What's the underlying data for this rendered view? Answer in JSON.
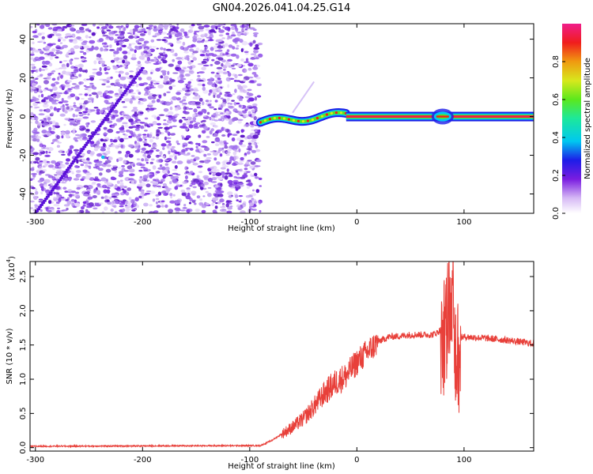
{
  "title": "GN04.2026.041.04.25.G14",
  "chart_data": [
    {
      "type": "heatmap",
      "name": "spectrogram",
      "xlabel": "Height of straight line (km)",
      "ylabel": "Frequency (Hz)",
      "xlim": [
        -305,
        165
      ],
      "ylim": [
        -50,
        48
      ],
      "xticks": [
        -300,
        -200,
        -100,
        0,
        100
      ],
      "yticks": [
        -40,
        -20,
        0,
        20,
        40
      ],
      "noise_region_x": [
        -305,
        -90
      ],
      "linear_trend": {
        "x": [
          -300,
          -200
        ],
        "y": [
          -50,
          25
        ]
      },
      "strong_signal": {
        "x": [
          -90,
          165
        ],
        "y": [
          -4,
          1
        ]
      },
      "faint_branch": {
        "x": [
          -60,
          -40
        ],
        "y": [
          2,
          18
        ]
      },
      "colorbar": {
        "label": "Normalized spectral amplitude",
        "range": [
          0,
          1
        ],
        "ticks": [
          "0.0",
          "0.2",
          "0.4",
          "0.6",
          "0.8"
        ]
      }
    },
    {
      "type": "line",
      "name": "snr",
      "xlabel": "Height of straight line (km)",
      "ylabel": "SNR (10 * v/v)",
      "scale_note": "(x10",
      "scale_exp": "4",
      "scale_close": ")",
      "xlim": [
        -305,
        165
      ],
      "ylim": [
        -0.05,
        2.72
      ],
      "xticks": [
        -300,
        -200,
        -100,
        0,
        100
      ],
      "yticks": [
        "0.0",
        "0.5",
        "1.0",
        "1.5",
        "2.0",
        "2.5"
      ],
      "color": "#e8403a",
      "series": [
        {
          "name": "SNR",
          "x": [
            -305,
            -100,
            -90,
            -80,
            -70,
            -60,
            -50,
            -40,
            -30,
            -20,
            -10,
            0,
            10,
            20,
            30,
            40,
            50,
            60,
            70,
            75,
            80,
            85,
            88,
            90,
            92,
            95,
            100,
            120,
            140,
            165
          ],
          "y": [
            0.02,
            0.03,
            0.03,
            0.1,
            0.2,
            0.3,
            0.42,
            0.6,
            0.8,
            0.95,
            1.05,
            1.25,
            1.4,
            1.55,
            1.62,
            1.63,
            1.65,
            1.65,
            1.65,
            1.68,
            1.75,
            2.2,
            2.65,
            2.4,
            1.7,
            1.6,
            1.62,
            1.6,
            1.57,
            1.52
          ]
        }
      ]
    }
  ]
}
